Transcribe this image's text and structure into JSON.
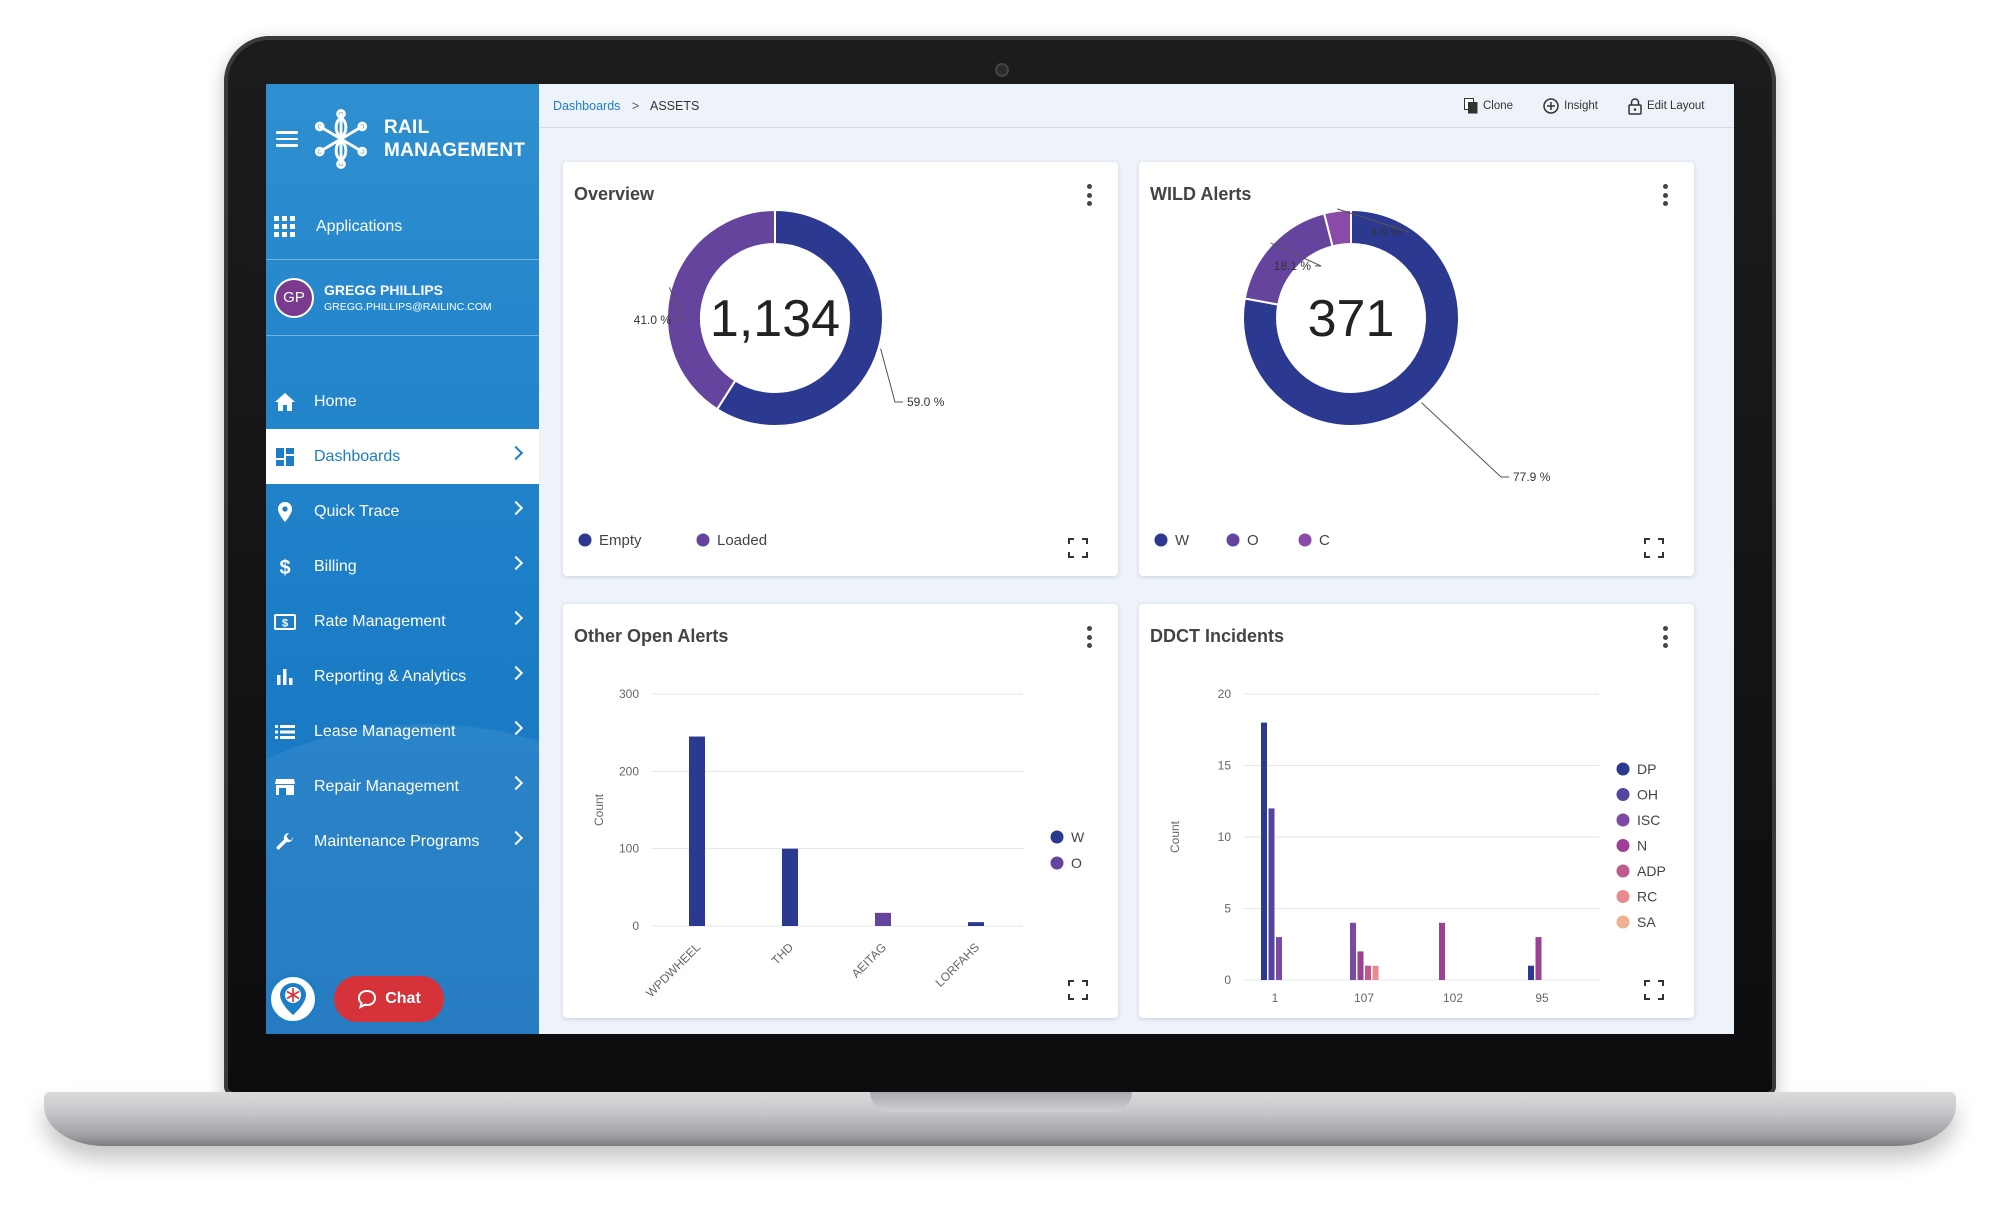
{
  "brand": {
    "line1": "RAIL",
    "line2": "MANAGEMENT"
  },
  "sidebar": {
    "applications_label": "Applications",
    "user": {
      "initials": "GP",
      "name": "GREGG PHILLIPS",
      "email": "GREGG.PHILLIPS@RAILINC.COM"
    },
    "items": [
      {
        "label": "Home",
        "icon": "home-icon",
        "chevron": false,
        "active": false
      },
      {
        "label": "Dashboards",
        "icon": "dashboard-icon",
        "chevron": true,
        "active": true
      },
      {
        "label": "Quick Trace",
        "icon": "location-pin-icon",
        "chevron": true,
        "active": false
      },
      {
        "label": "Billing",
        "icon": "dollar-icon",
        "chevron": true,
        "active": false
      },
      {
        "label": "Rate Management",
        "icon": "money-icon",
        "chevron": true,
        "active": false
      },
      {
        "label": "Reporting & Analytics",
        "icon": "bar-chart-icon",
        "chevron": true,
        "active": false
      },
      {
        "label": "Lease Management",
        "icon": "list-icon",
        "chevron": true,
        "active": false
      },
      {
        "label": "Repair Management",
        "icon": "store-icon",
        "chevron": true,
        "active": false
      },
      {
        "label": "Maintenance Programs",
        "icon": "wrench-icon",
        "chevron": true,
        "active": false
      }
    ],
    "chat_label": "Chat"
  },
  "breadcrumb": {
    "root": "Dashboards",
    "separator": ">",
    "current": "ASSETS"
  },
  "actions": {
    "clone": "Clone",
    "insight": "Insight",
    "edit_layout": "Edit Layout"
  },
  "colors": {
    "primary_blue": "#1c7ec7",
    "navy": "#2b3990",
    "purple": "#65449e",
    "violet": "#8a4aa8",
    "chat_red": "#d6323a"
  },
  "cards": {
    "overview": {
      "title": "Overview",
      "center": "1,134"
    },
    "wild": {
      "title": "WILD Alerts",
      "center": "371"
    },
    "other": {
      "title": "Other Open Alerts"
    },
    "ddct": {
      "title": "DDCT Incidents"
    }
  },
  "chart_data": [
    {
      "type": "pie",
      "title": "Overview",
      "labels": [
        "Empty",
        "Loaded"
      ],
      "values": [
        59.0,
        41.0
      ],
      "value_labels": [
        "59.0 %",
        "41.0 %"
      ],
      "colors": [
        "#2b3990",
        "#65449e"
      ],
      "total": "1,134",
      "legend": "bottom-left"
    },
    {
      "type": "pie",
      "title": "WILD Alerts",
      "labels": [
        "W",
        "O",
        "C"
      ],
      "values": [
        77.9,
        18.1,
        4.0
      ],
      "value_labels": [
        "77.9 %",
        "18.1 %",
        "4.0 %"
      ],
      "colors": [
        "#2b3990",
        "#65449e",
        "#8a4aa8"
      ],
      "total": "371",
      "legend": "bottom-left"
    },
    {
      "type": "bar",
      "title": "Other Open Alerts",
      "ylabel": "Count",
      "ylim": [
        0,
        300
      ],
      "yticks": [
        "0",
        "100",
        "200",
        "300"
      ],
      "categories": [
        "WPDWHEEL",
        "THD",
        "AEITAG",
        "LORFAHS"
      ],
      "series": [
        {
          "name": "W",
          "color": "#2b3990",
          "values": [
            245,
            100,
            0,
            5
          ]
        },
        {
          "name": "O",
          "color": "#65449e",
          "values": [
            0,
            0,
            17,
            0
          ]
        }
      ],
      "legend": "right"
    },
    {
      "type": "bar",
      "title": "DDCT Incidents",
      "ylabel": "Count",
      "ylim": [
        0,
        20
      ],
      "yticks": [
        "0",
        "5",
        "10",
        "15",
        "20"
      ],
      "categories": [
        "1",
        "107",
        "102",
        "95"
      ],
      "series": [
        {
          "name": "DP",
          "color": "#2b3990",
          "values": [
            18,
            0,
            0,
            1
          ]
        },
        {
          "name": "OH",
          "color": "#55449e",
          "values": [
            12,
            0,
            0,
            0
          ]
        },
        {
          "name": "ISC",
          "color": "#7b4aa5",
          "values": [
            3,
            4,
            0,
            0
          ]
        },
        {
          "name": "N",
          "color": "#9c3f95",
          "values": [
            0,
            2,
            4,
            3
          ]
        },
        {
          "name": "ADP",
          "color": "#c15a8c",
          "values": [
            0,
            1,
            0,
            0
          ]
        },
        {
          "name": "RC",
          "color": "#e88a8e",
          "values": [
            0,
            1,
            0,
            0
          ]
        },
        {
          "name": "SA",
          "color": "#f1b08f",
          "values": [
            0,
            0,
            0,
            0
          ]
        }
      ],
      "legend": "right"
    }
  ]
}
